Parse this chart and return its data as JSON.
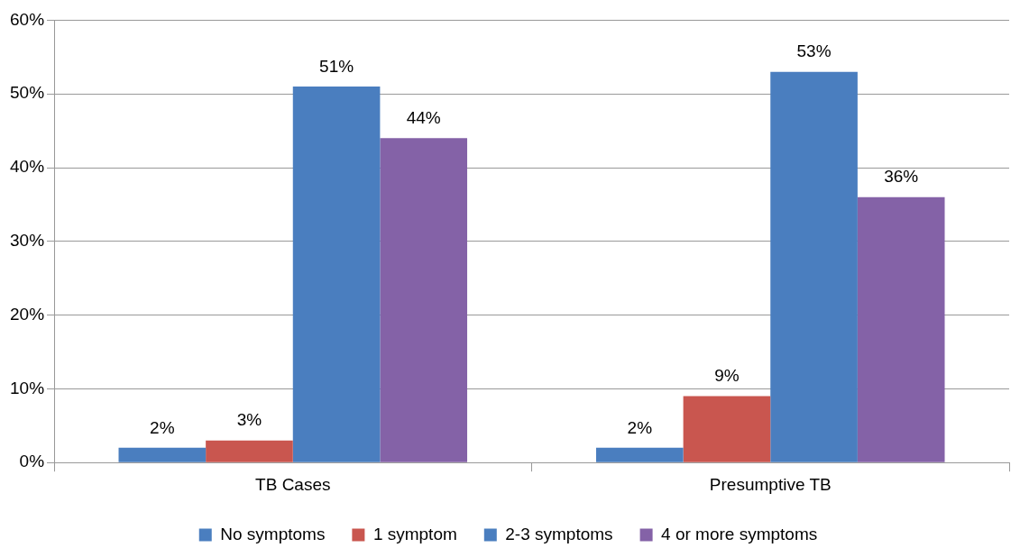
{
  "chart_data": {
    "type": "bar",
    "categories": [
      "TB Cases",
      "Presumptive TB"
    ],
    "series": [
      {
        "name": "No symptoms",
        "color": "#4a7ebf",
        "values": [
          2,
          2
        ],
        "value_labels": [
          "2%",
          "2%"
        ]
      },
      {
        "name": "1 symptom",
        "color": "#c9564f",
        "values": [
          3,
          9
        ],
        "value_labels": [
          "3%",
          "9%"
        ]
      },
      {
        "name": "2-3 symptoms",
        "color": "#4a7ebf",
        "values": [
          51,
          53
        ],
        "value_labels": [
          "51%",
          "53%"
        ]
      },
      {
        "name": "4 or more symptoms",
        "color": "#8462a7",
        "values": [
          44,
          36
        ],
        "value_labels": [
          "44%",
          "36%"
        ]
      }
    ],
    "ylim": [
      0,
      60
    ],
    "yticks": [
      {
        "value": 0,
        "label": "0%"
      },
      {
        "value": 10,
        "label": "10%"
      },
      {
        "value": 20,
        "label": "20%"
      },
      {
        "value": 30,
        "label": "30%"
      },
      {
        "value": 40,
        "label": "40%"
      },
      {
        "value": 50,
        "label": "50%"
      },
      {
        "value": 60,
        "label": "60%"
      }
    ],
    "grid": "y",
    "legend": "bottom"
  }
}
